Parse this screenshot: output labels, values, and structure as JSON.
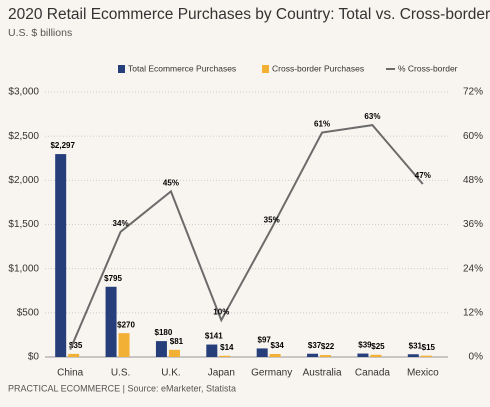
{
  "chart_data": {
    "type": "bar-line",
    "title": "2020 Retail Ecommerce Purchases by Country: Total vs. Cross-border",
    "subtitle": "U.S. $ billions",
    "source": "PRACTICAL ECOMMERCE | Source: eMarketer, Statista",
    "categories": [
      "China",
      "U.S.",
      "U.K.",
      "Japan",
      "Germany",
      "Australia",
      "Canada",
      "Mexico"
    ],
    "series": [
      {
        "name": "Total Ecommerce Purchases",
        "color": "#263f7a",
        "values": [
          2297,
          795,
          180,
          141,
          97,
          37,
          39,
          31
        ],
        "value_labels": [
          "$2,297",
          "$795",
          "$180",
          "$141",
          "$97",
          "$37",
          "$39",
          "$31"
        ]
      },
      {
        "name": "Cross-border Purchases",
        "color": "#f2b134",
        "values": [
          35,
          270,
          81,
          14,
          34,
          22,
          25,
          15
        ],
        "value_labels": [
          "$35",
          "$270",
          "$81",
          "$14",
          "$34",
          "$22",
          "$25",
          "$15"
        ]
      },
      {
        "name": "% Cross-border",
        "color": "#6b6b6b",
        "axis": "y2",
        "type": "line",
        "values": [
          2,
          34,
          45,
          10,
          35,
          61,
          63,
          47
        ],
        "value_labels": [
          null,
          "34%",
          "45%",
          "10%",
          "35%",
          "61%",
          "63%",
          "47%"
        ]
      }
    ],
    "ylim": [
      0,
      3000
    ],
    "yticks": [
      {
        "value": 0,
        "label": "$0"
      },
      {
        "value": 500,
        "label": "$500"
      },
      {
        "value": 1000,
        "label": "$1,000"
      },
      {
        "value": 1500,
        "label": "$1,500"
      },
      {
        "value": 2000,
        "label": "$2,000"
      },
      {
        "value": 2500,
        "label": "$2,500"
      },
      {
        "value": 3000,
        "label": "$3,000"
      }
    ],
    "y2lim": [
      0,
      72
    ],
    "y2ticks": [
      {
        "value": 0,
        "label": "0%"
      },
      {
        "value": 12,
        "label": "12%"
      },
      {
        "value": 24,
        "label": "24%"
      },
      {
        "value": 36,
        "label": "36%"
      },
      {
        "value": 48,
        "label": "48%"
      },
      {
        "value": 60,
        "label": "60%"
      },
      {
        "value": 72,
        "label": "72%"
      }
    ],
    "grid": true,
    "legend": "top"
  }
}
